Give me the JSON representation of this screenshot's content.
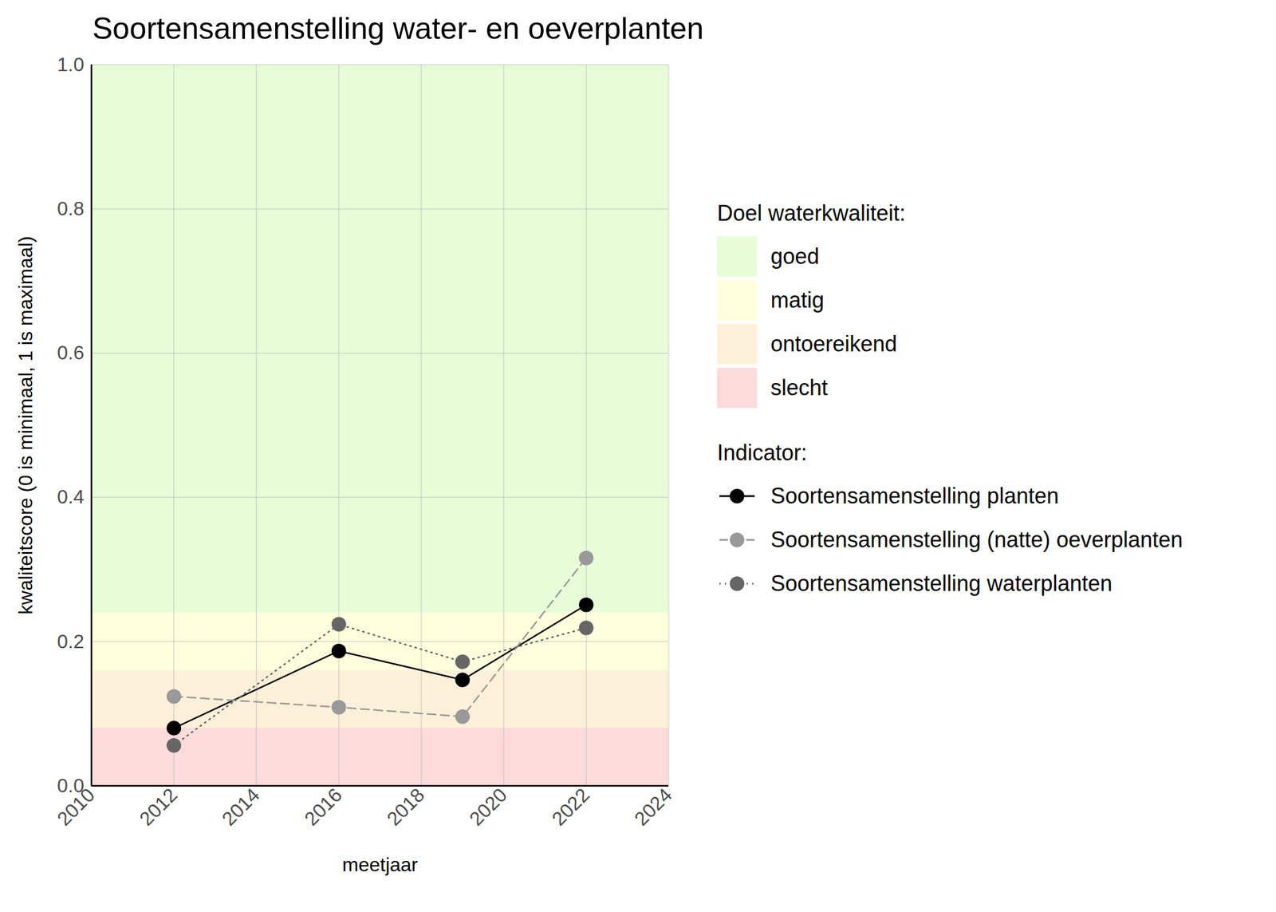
{
  "chart_data": {
    "type": "line",
    "title": "Soortensamenstelling water- en oeverplanten",
    "x_label": "meetjaar",
    "y_label": "kwaliteitscore (0 is minimaal, 1 is maximaal)",
    "x": [
      2012,
      2016,
      2019,
      2022
    ],
    "series": [
      {
        "name": "Soortensamenstelling planten",
        "color": "#000000",
        "line_style": "solid",
        "marker": "circle",
        "values": [
          0.08,
          0.187,
          0.147,
          0.251
        ]
      },
      {
        "name": "Soortensamenstelling (natte) oeverplanten",
        "color": "#999999",
        "line_style": "dashed",
        "marker": "circle",
        "values": [
          0.124,
          0.109,
          0.096,
          0.316
        ]
      },
      {
        "name": "Soortensamenstelling waterplanten",
        "color": "#666666",
        "line_style": "dotted",
        "marker": "circle",
        "values": [
          0.056,
          0.224,
          0.172,
          0.219
        ]
      }
    ],
    "series_title": "Indicator:",
    "bands_title": "Doel waterkwaliteit:",
    "bands": [
      {
        "name": "goed",
        "from": 0.24,
        "to": 1.0,
        "color": "#e6fdd8"
      },
      {
        "name": "matig",
        "from": 0.16,
        "to": 0.24,
        "color": "#fefedc"
      },
      {
        "name": "ontoereikend",
        "from": 0.08,
        "to": 0.16,
        "color": "#fdf0d8"
      },
      {
        "name": "slecht",
        "from": 0.0,
        "to": 0.08,
        "color": "#fddadc"
      }
    ],
    "xlim": [
      2010,
      2024
    ],
    "xticks": [
      2010,
      2012,
      2014,
      2016,
      2018,
      2020,
      2022,
      2024
    ],
    "ylim": [
      0,
      1
    ],
    "yticks": [
      {
        "value": 0,
        "label": "0.0"
      },
      0.2,
      0.4,
      0.6,
      0.8,
      {
        "value": 1,
        "label": "1.0"
      }
    ],
    "grid": true,
    "legend": "right"
  }
}
